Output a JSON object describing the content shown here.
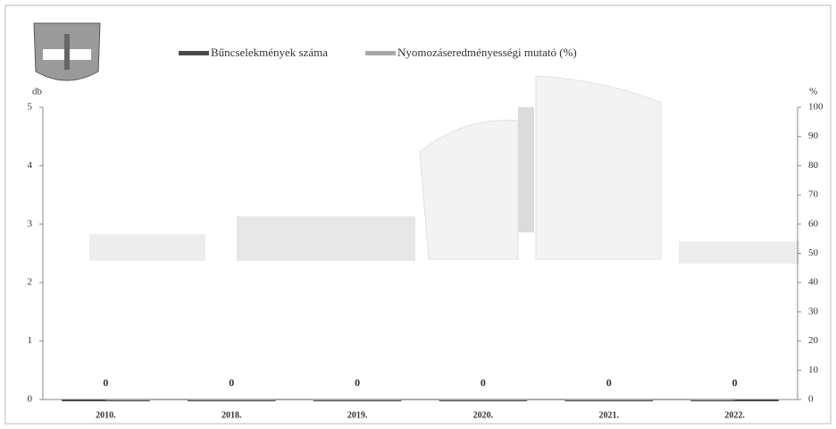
{
  "chart_data": {
    "type": "bar",
    "categories": [
      "2010.",
      "2018.",
      "2019.",
      "2020.",
      "2021.",
      "2022."
    ],
    "series": [
      {
        "name": "Bűncselekmények száma",
        "color": "#4a4a4a",
        "values": [
          0,
          0,
          0,
          0,
          0,
          0
        ]
      },
      {
        "name": "Nyomozáseredményességi mutató (%)",
        "color": "#a8a8a8",
        "axis": "y2",
        "type": "line",
        "values": [
          0,
          0,
          0,
          0,
          0,
          0
        ]
      }
    ],
    "y_label": "db",
    "y2_label": "%",
    "ylim": [
      0,
      5
    ],
    "yticks": [
      0,
      1,
      2,
      3,
      4,
      5
    ],
    "y2lim": [
      0,
      100
    ],
    "y2ticks": [
      0,
      10,
      20,
      30,
      40,
      50,
      60,
      70,
      80,
      90,
      100
    ],
    "grid": false
  }
}
